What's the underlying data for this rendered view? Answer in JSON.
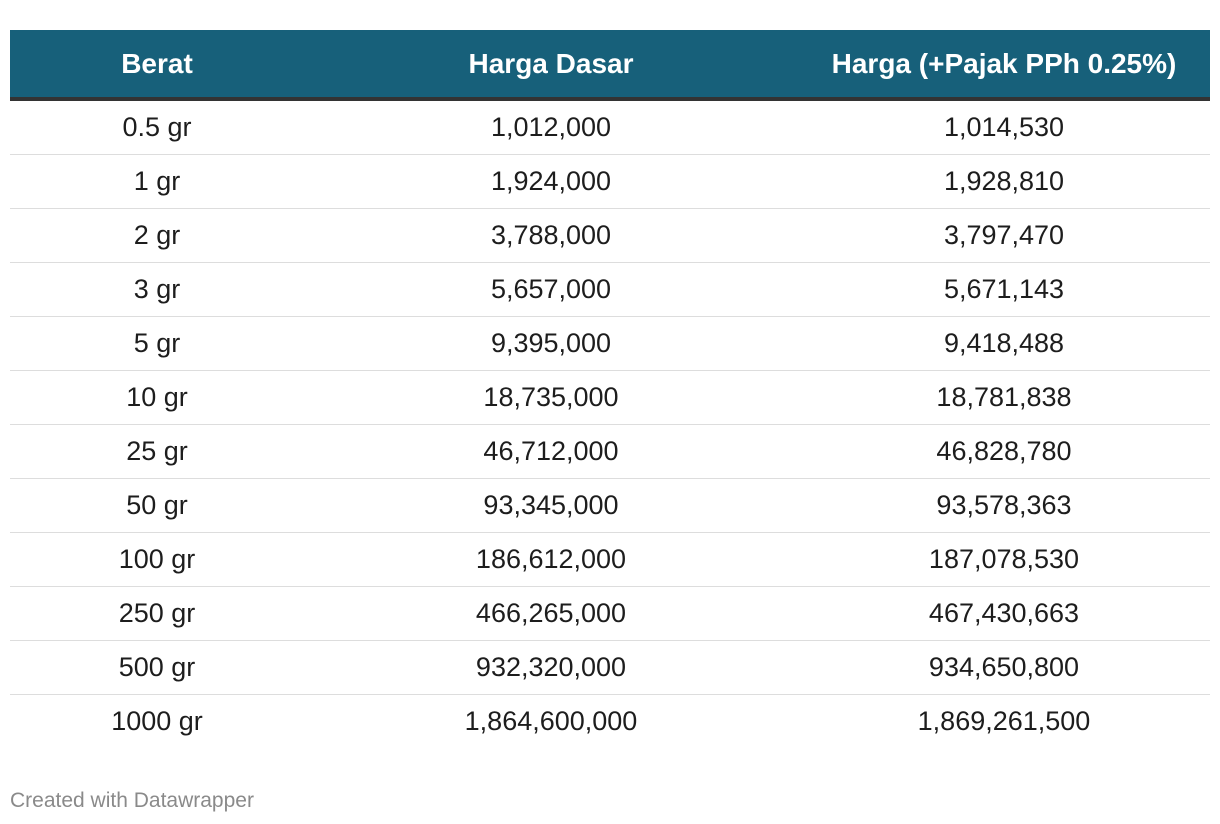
{
  "table": {
    "headers": [
      "Berat",
      "Harga Dasar",
      "Harga (+Pajak PPh 0.25%)"
    ],
    "rows": [
      [
        "0.5 gr",
        "1,012,000",
        "1,014,530"
      ],
      [
        "1 gr",
        "1,924,000",
        "1,928,810"
      ],
      [
        "2 gr",
        "3,788,000",
        "3,797,470"
      ],
      [
        "3 gr",
        "5,657,000",
        "5,671,143"
      ],
      [
        "5 gr",
        "9,395,000",
        "9,418,488"
      ],
      [
        "10 gr",
        "18,735,000",
        "18,781,838"
      ],
      [
        "25 gr",
        "46,712,000",
        "46,828,780"
      ],
      [
        "50 gr",
        "93,345,000",
        "93,578,363"
      ],
      [
        "100 gr",
        "186,612,000",
        "187,078,530"
      ],
      [
        "250 gr",
        "466,265,000",
        "467,430,663"
      ],
      [
        "500 gr",
        "932,320,000",
        "934,650,800"
      ],
      [
        "1000 gr",
        "1,864,600,000",
        "1,869,261,500"
      ]
    ],
    "header_color": "#17607a"
  },
  "footer": {
    "credit": "Created with Datawrapper"
  }
}
